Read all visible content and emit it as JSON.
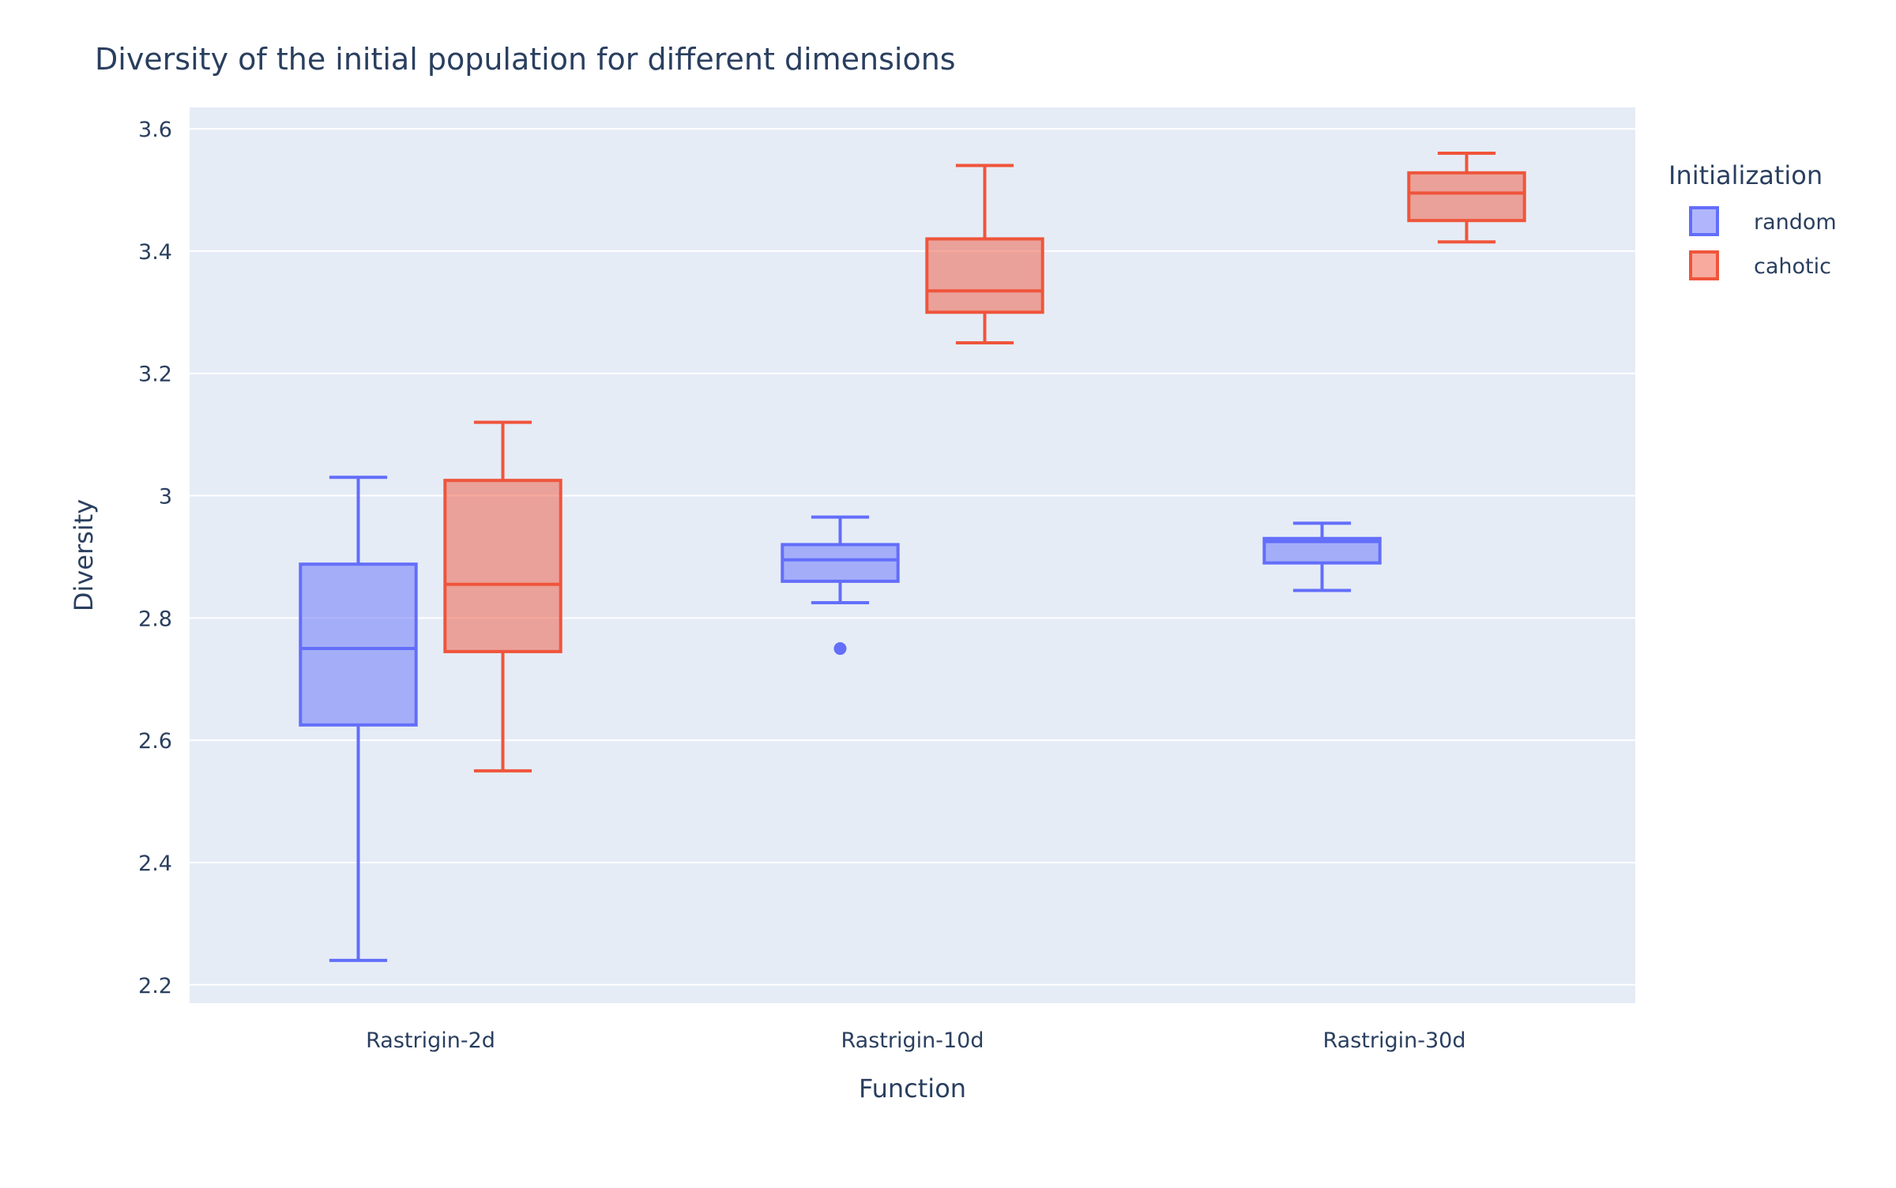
{
  "chart_data": {
    "type": "box",
    "title": "Diversity of the initial population for different dimensions",
    "xlabel": "Function",
    "ylabel": "Diversity",
    "categories": [
      "Rastrigin-2d",
      "Rastrigin-10d",
      "Rastrigin-30d"
    ],
    "ylim": [
      2.17,
      3.635
    ],
    "yticks": [
      2.2,
      2.4,
      2.6,
      2.8,
      3.0,
      3.2,
      3.4,
      3.6
    ],
    "ytick_labels": [
      "2.2",
      "2.4",
      "2.6",
      "2.8",
      "3",
      "3.2",
      "3.4",
      "3.6"
    ],
    "grid": true,
    "legend": {
      "title": "Initialization",
      "placement": "right"
    },
    "series": [
      {
        "name": "random",
        "color": "#636efa",
        "fill": "rgba(99,110,250,0.5)",
        "boxes": [
          {
            "category": "Rastrigin-2d",
            "min": 2.24,
            "q1": 2.625,
            "median": 2.75,
            "q3": 2.888,
            "max": 3.03,
            "outliers": []
          },
          {
            "category": "Rastrigin-10d",
            "min": 2.825,
            "q1": 2.86,
            "median": 2.895,
            "q3": 2.92,
            "max": 2.965,
            "outliers": [
              2.75
            ]
          },
          {
            "category": "Rastrigin-30d",
            "min": 2.845,
            "q1": 2.89,
            "median": 2.925,
            "q3": 2.93,
            "max": 2.955,
            "outliers": []
          }
        ]
      },
      {
        "name": "cahotic",
        "color": "#ef553b",
        "fill": "rgba(239,85,59,0.5)",
        "boxes": [
          {
            "category": "Rastrigin-2d",
            "min": 2.55,
            "q1": 2.745,
            "median": 2.855,
            "q3": 3.025,
            "max": 3.12,
            "outliers": []
          },
          {
            "category": "Rastrigin-10d",
            "min": 3.25,
            "q1": 3.3,
            "median": 3.335,
            "q3": 3.42,
            "max": 3.54,
            "outliers": []
          },
          {
            "category": "Rastrigin-30d",
            "min": 3.415,
            "q1": 3.45,
            "median": 3.495,
            "q3": 3.528,
            "max": 3.56,
            "outliers": []
          }
        ]
      }
    ]
  }
}
